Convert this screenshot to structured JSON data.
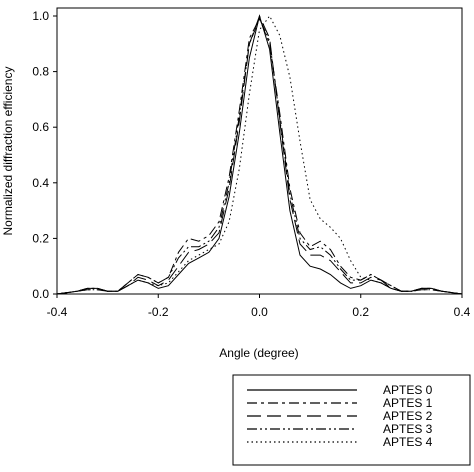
{
  "chart_data": {
    "type": "line",
    "xlabel": "Angle (degree)",
    "ylabel": "Normalized diffraction efficiency",
    "x": [
      -0.4,
      -0.38,
      -0.36,
      -0.34,
      -0.32,
      -0.3,
      -0.28,
      -0.26,
      -0.24,
      -0.22,
      -0.2,
      -0.18,
      -0.16,
      -0.14,
      -0.12,
      -0.1,
      -0.08,
      -0.06,
      -0.04,
      -0.02,
      0,
      0.02,
      0.04,
      0.06,
      0.08,
      0.1,
      0.12,
      0.14,
      0.16,
      0.18,
      0.2,
      0.22,
      0.24,
      0.26,
      0.28,
      0.3,
      0.32,
      0.34,
      0.36,
      0.38,
      0.4
    ],
    "series": [
      {
        "name": "APTES 0",
        "color": "#000000",
        "dash": "",
        "values": [
          0,
          0.005,
          0.01,
          0.02,
          0.02,
          0.01,
          0.01,
          0.03,
          0.05,
          0.04,
          0.02,
          0.03,
          0.07,
          0.11,
          0.13,
          0.15,
          0.2,
          0.35,
          0.58,
          0.85,
          1.0,
          0.88,
          0.58,
          0.3,
          0.14,
          0.1,
          0.09,
          0.07,
          0.04,
          0.02,
          0.03,
          0.05,
          0.04,
          0.02,
          0.01,
          0.01,
          0.02,
          0.02,
          0.01,
          0.005,
          0
        ]
      },
      {
        "name": "APTES 1",
        "color": "#000000",
        "dash": "10 4 3 4",
        "values": [
          0,
          0.005,
          0.01,
          0.02,
          0.02,
          0.01,
          0.01,
          0.04,
          0.07,
          0.06,
          0.04,
          0.06,
          0.15,
          0.2,
          0.19,
          0.21,
          0.26,
          0.42,
          0.66,
          0.92,
          0.99,
          0.9,
          0.65,
          0.38,
          0.22,
          0.17,
          0.19,
          0.16,
          0.1,
          0.06,
          0.05,
          0.07,
          0.05,
          0.03,
          0.01,
          0.01,
          0.02,
          0.02,
          0.01,
          0.005,
          0
        ]
      },
      {
        "name": "APTES 2",
        "color": "#000000",
        "dash": "14 6",
        "values": [
          0,
          0.005,
          0.01,
          0.015,
          0.015,
          0.01,
          0.01,
          0.03,
          0.06,
          0.05,
          0.03,
          0.05,
          0.1,
          0.15,
          0.16,
          0.18,
          0.22,
          0.38,
          0.62,
          0.9,
          1.0,
          0.92,
          0.62,
          0.34,
          0.18,
          0.14,
          0.14,
          0.12,
          0.08,
          0.04,
          0.04,
          0.06,
          0.05,
          0.02,
          0.01,
          0.01,
          0.015,
          0.015,
          0.01,
          0.005,
          0
        ]
      },
      {
        "name": "APTES 3",
        "color": "#000000",
        "dash": "10 3 2 3 2 3",
        "values": [
          0,
          0.005,
          0.01,
          0.02,
          0.02,
          0.01,
          0.01,
          0.04,
          0.07,
          0.06,
          0.04,
          0.06,
          0.13,
          0.17,
          0.17,
          0.19,
          0.24,
          0.4,
          0.64,
          0.9,
          0.99,
          0.91,
          0.63,
          0.36,
          0.2,
          0.16,
          0.17,
          0.14,
          0.09,
          0.05,
          0.05,
          0.07,
          0.05,
          0.03,
          0.01,
          0.01,
          0.02,
          0.02,
          0.01,
          0.005,
          0
        ]
      },
      {
        "name": "APTES 4",
        "color": "#000000",
        "dash": "1.5 3",
        "values": [
          0,
          0.005,
          0.01,
          0.015,
          0.015,
          0.01,
          0.01,
          0.03,
          0.05,
          0.04,
          0.03,
          0.04,
          0.08,
          0.12,
          0.14,
          0.16,
          0.18,
          0.26,
          0.45,
          0.72,
          0.95,
          1.0,
          0.93,
          0.78,
          0.55,
          0.34,
          0.27,
          0.24,
          0.2,
          0.12,
          0.06,
          0.05,
          0.04,
          0.02,
          0.01,
          0.01,
          0.015,
          0.015,
          0.01,
          0.005,
          0
        ]
      }
    ],
    "xlim": [
      -0.4,
      0.4
    ],
    "xticks": [
      -0.4,
      -0.2,
      {
        "value": 0,
        "label": "0.0"
      },
      0.2,
      0.4
    ],
    "ylim": [
      0,
      1.0
    ],
    "yticks": [
      {
        "value": 0,
        "label": "0.0"
      },
      0.2,
      0.4,
      0.6,
      0.8,
      {
        "value": 1.0,
        "label": "1.0"
      }
    ],
    "grid": false,
    "legend": "bottom-right"
  }
}
